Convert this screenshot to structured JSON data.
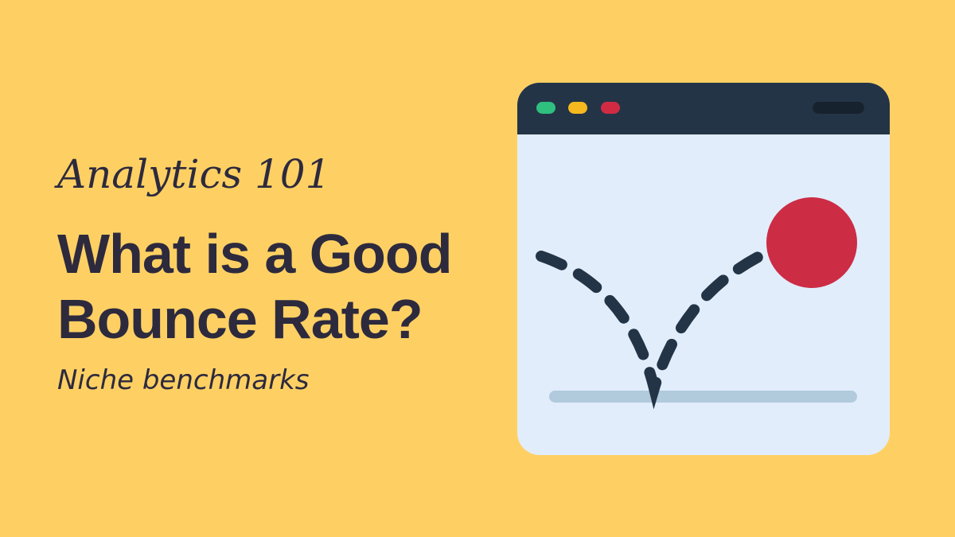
{
  "kicker": "Analytics 101",
  "title": {
    "line1": "What is a Good",
    "line2": "Bounce Rate?"
  },
  "subtitle": "Niche benchmarks"
}
